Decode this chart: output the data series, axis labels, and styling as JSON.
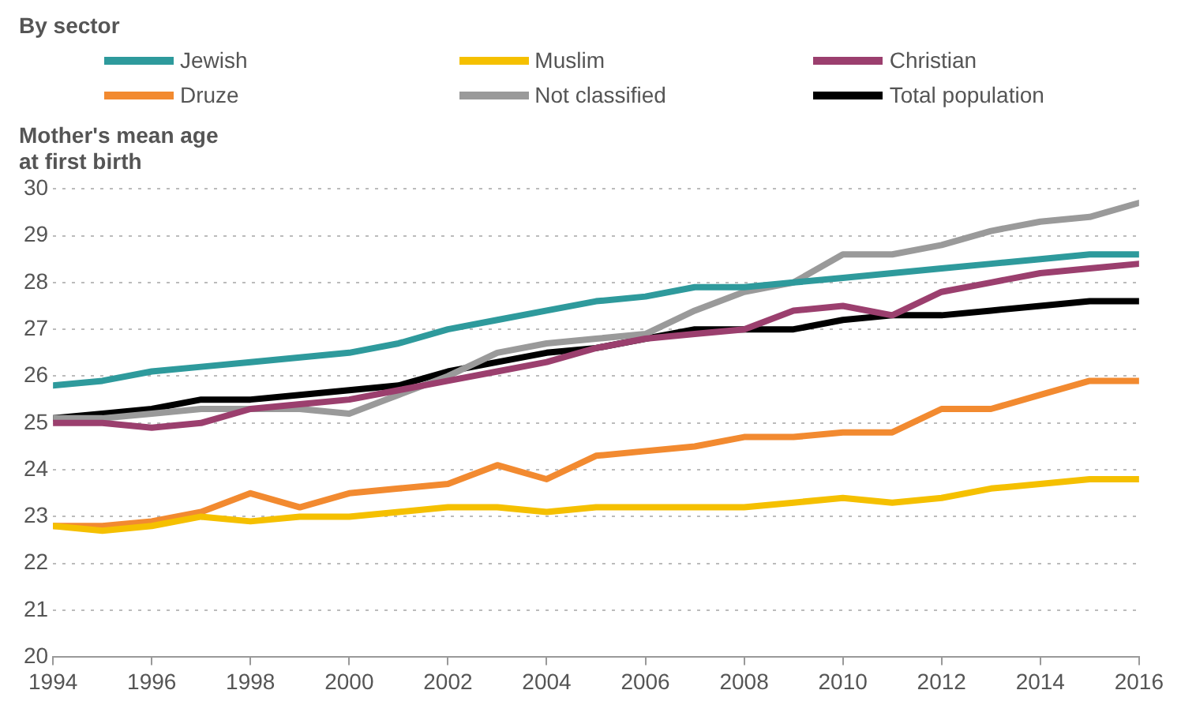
{
  "chart_data": {
    "type": "line",
    "title": "By sector",
    "ylabel": "Mother's mean age\nat first birth",
    "x": [
      1994,
      1995,
      1996,
      1997,
      1998,
      1999,
      2000,
      2001,
      2002,
      2003,
      2004,
      2005,
      2006,
      2007,
      2008,
      2009,
      2010,
      2011,
      2012,
      2013,
      2014,
      2015,
      2016
    ],
    "series": [
      {
        "name": "Jewish",
        "color": "#2e9a9c",
        "values": [
          25.8,
          25.9,
          26.1,
          26.2,
          26.3,
          26.4,
          26.5,
          26.7,
          27.0,
          27.2,
          27.4,
          27.6,
          27.7,
          27.9,
          27.9,
          28.0,
          28.1,
          28.2,
          28.3,
          28.4,
          28.5,
          28.6,
          28.6
        ]
      },
      {
        "name": "Muslim",
        "color": "#f5c000",
        "values": [
          22.8,
          22.7,
          22.8,
          23.0,
          22.9,
          23.0,
          23.0,
          23.1,
          23.2,
          23.2,
          23.1,
          23.2,
          23.2,
          23.2,
          23.2,
          23.3,
          23.4,
          23.3,
          23.4,
          23.6,
          23.7,
          23.8,
          23.8
        ]
      },
      {
        "name": "Christian",
        "color": "#9b3f6e",
        "values": [
          25.0,
          25.0,
          24.9,
          25.0,
          25.3,
          25.4,
          25.5,
          25.7,
          25.9,
          26.1,
          26.3,
          26.6,
          26.8,
          26.9,
          27.0,
          27.4,
          27.5,
          27.3,
          27.8,
          28.0,
          28.2,
          28.3,
          28.4
        ]
      },
      {
        "name": "Druze",
        "color": "#f28a30",
        "values": [
          22.8,
          22.8,
          22.9,
          23.1,
          23.5,
          23.2,
          23.5,
          23.6,
          23.7,
          24.1,
          23.8,
          24.3,
          24.4,
          24.5,
          24.7,
          24.7,
          24.8,
          24.8,
          25.3,
          25.3,
          25.6,
          25.9,
          25.9
        ]
      },
      {
        "name": "Not classified",
        "color": "#9a9a9a",
        "values": [
          25.1,
          25.1,
          25.2,
          25.3,
          25.3,
          25.3,
          25.2,
          25.6,
          26.0,
          26.5,
          26.7,
          26.8,
          26.9,
          27.4,
          27.8,
          28.0,
          28.6,
          28.6,
          28.8,
          29.1,
          29.3,
          29.4,
          29.7
        ]
      },
      {
        "name": "Total population",
        "color": "#000000",
        "values": [
          25.1,
          25.2,
          25.3,
          25.5,
          25.5,
          25.6,
          25.7,
          25.8,
          26.1,
          26.3,
          26.5,
          26.6,
          26.8,
          27.0,
          27.0,
          27.0,
          27.2,
          27.3,
          27.3,
          27.4,
          27.5,
          27.6,
          27.6
        ]
      }
    ],
    "xlim": [
      1994,
      2016
    ],
    "xticks": [
      1994,
      1996,
      1998,
      2000,
      2002,
      2004,
      2006,
      2008,
      2010,
      2012,
      2014,
      2016
    ],
    "ylim": [
      20,
      30
    ],
    "yticks": [
      20,
      21,
      22,
      23,
      24,
      25,
      26,
      27,
      28,
      29,
      30
    ],
    "grid": "y",
    "legend": "top",
    "marker": "none",
    "line_style": "solid"
  }
}
